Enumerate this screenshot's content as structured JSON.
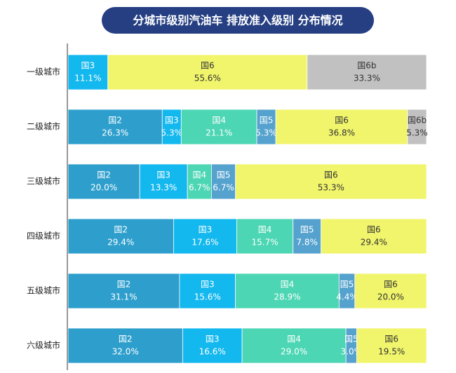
{
  "chart_data": {
    "type": "bar",
    "orientation": "horizontal",
    "stacked": true,
    "title": "分城市级别汽油车 排放准入级别 分布情况",
    "categories": [
      "一级城市",
      "二级城市",
      "三级城市",
      "四级城市",
      "五级城市",
      "六级城市"
    ],
    "series": [
      {
        "name": "国2",
        "color": "#2e9fcd",
        "values": [
          null,
          26.3,
          20.0,
          29.4,
          31.1,
          32.0
        ],
        "value_labels": [
          null,
          "26.3%",
          "20.0%",
          "29.4%",
          "31.1%",
          "32.0%"
        ]
      },
      {
        "name": "国3",
        "color": "#13b8ef",
        "values": [
          11.1,
          5.3,
          13.3,
          17.6,
          15.6,
          16.6
        ],
        "value_labels": [
          "11.1%",
          "5.3%",
          "13.3%",
          "17.6%",
          "15.6%",
          "16.6%"
        ]
      },
      {
        "name": "国4",
        "color": "#4cd6b3",
        "values": [
          null,
          21.1,
          6.7,
          15.7,
          28.9,
          29.0
        ],
        "value_labels": [
          null,
          "21.1%",
          "6.7%",
          "15.7%",
          "28.9%",
          "29.0%"
        ]
      },
      {
        "name": "国5",
        "color": "#56a2cf",
        "values": [
          null,
          5.3,
          6.7,
          7.8,
          4.4,
          3.0
        ],
        "value_labels": [
          null,
          "5.3%",
          "6.7%",
          "7.8%",
          "4.4%",
          "3.0%"
        ]
      },
      {
        "name": "国6",
        "color": "#f1f56b",
        "values": [
          55.6,
          36.8,
          53.3,
          29.4,
          20.0,
          19.5
        ],
        "value_labels": [
          "55.6%",
          "36.8%",
          "53.3%",
          "29.4%",
          "20.0%",
          "19.5%"
        ]
      },
      {
        "name": "国6b",
        "color": "#c1c1c1",
        "values": [
          33.3,
          5.3,
          null,
          null,
          null,
          null
        ],
        "value_labels": [
          "33.3%",
          "5.3%",
          null,
          null,
          null,
          null
        ]
      }
    ]
  }
}
